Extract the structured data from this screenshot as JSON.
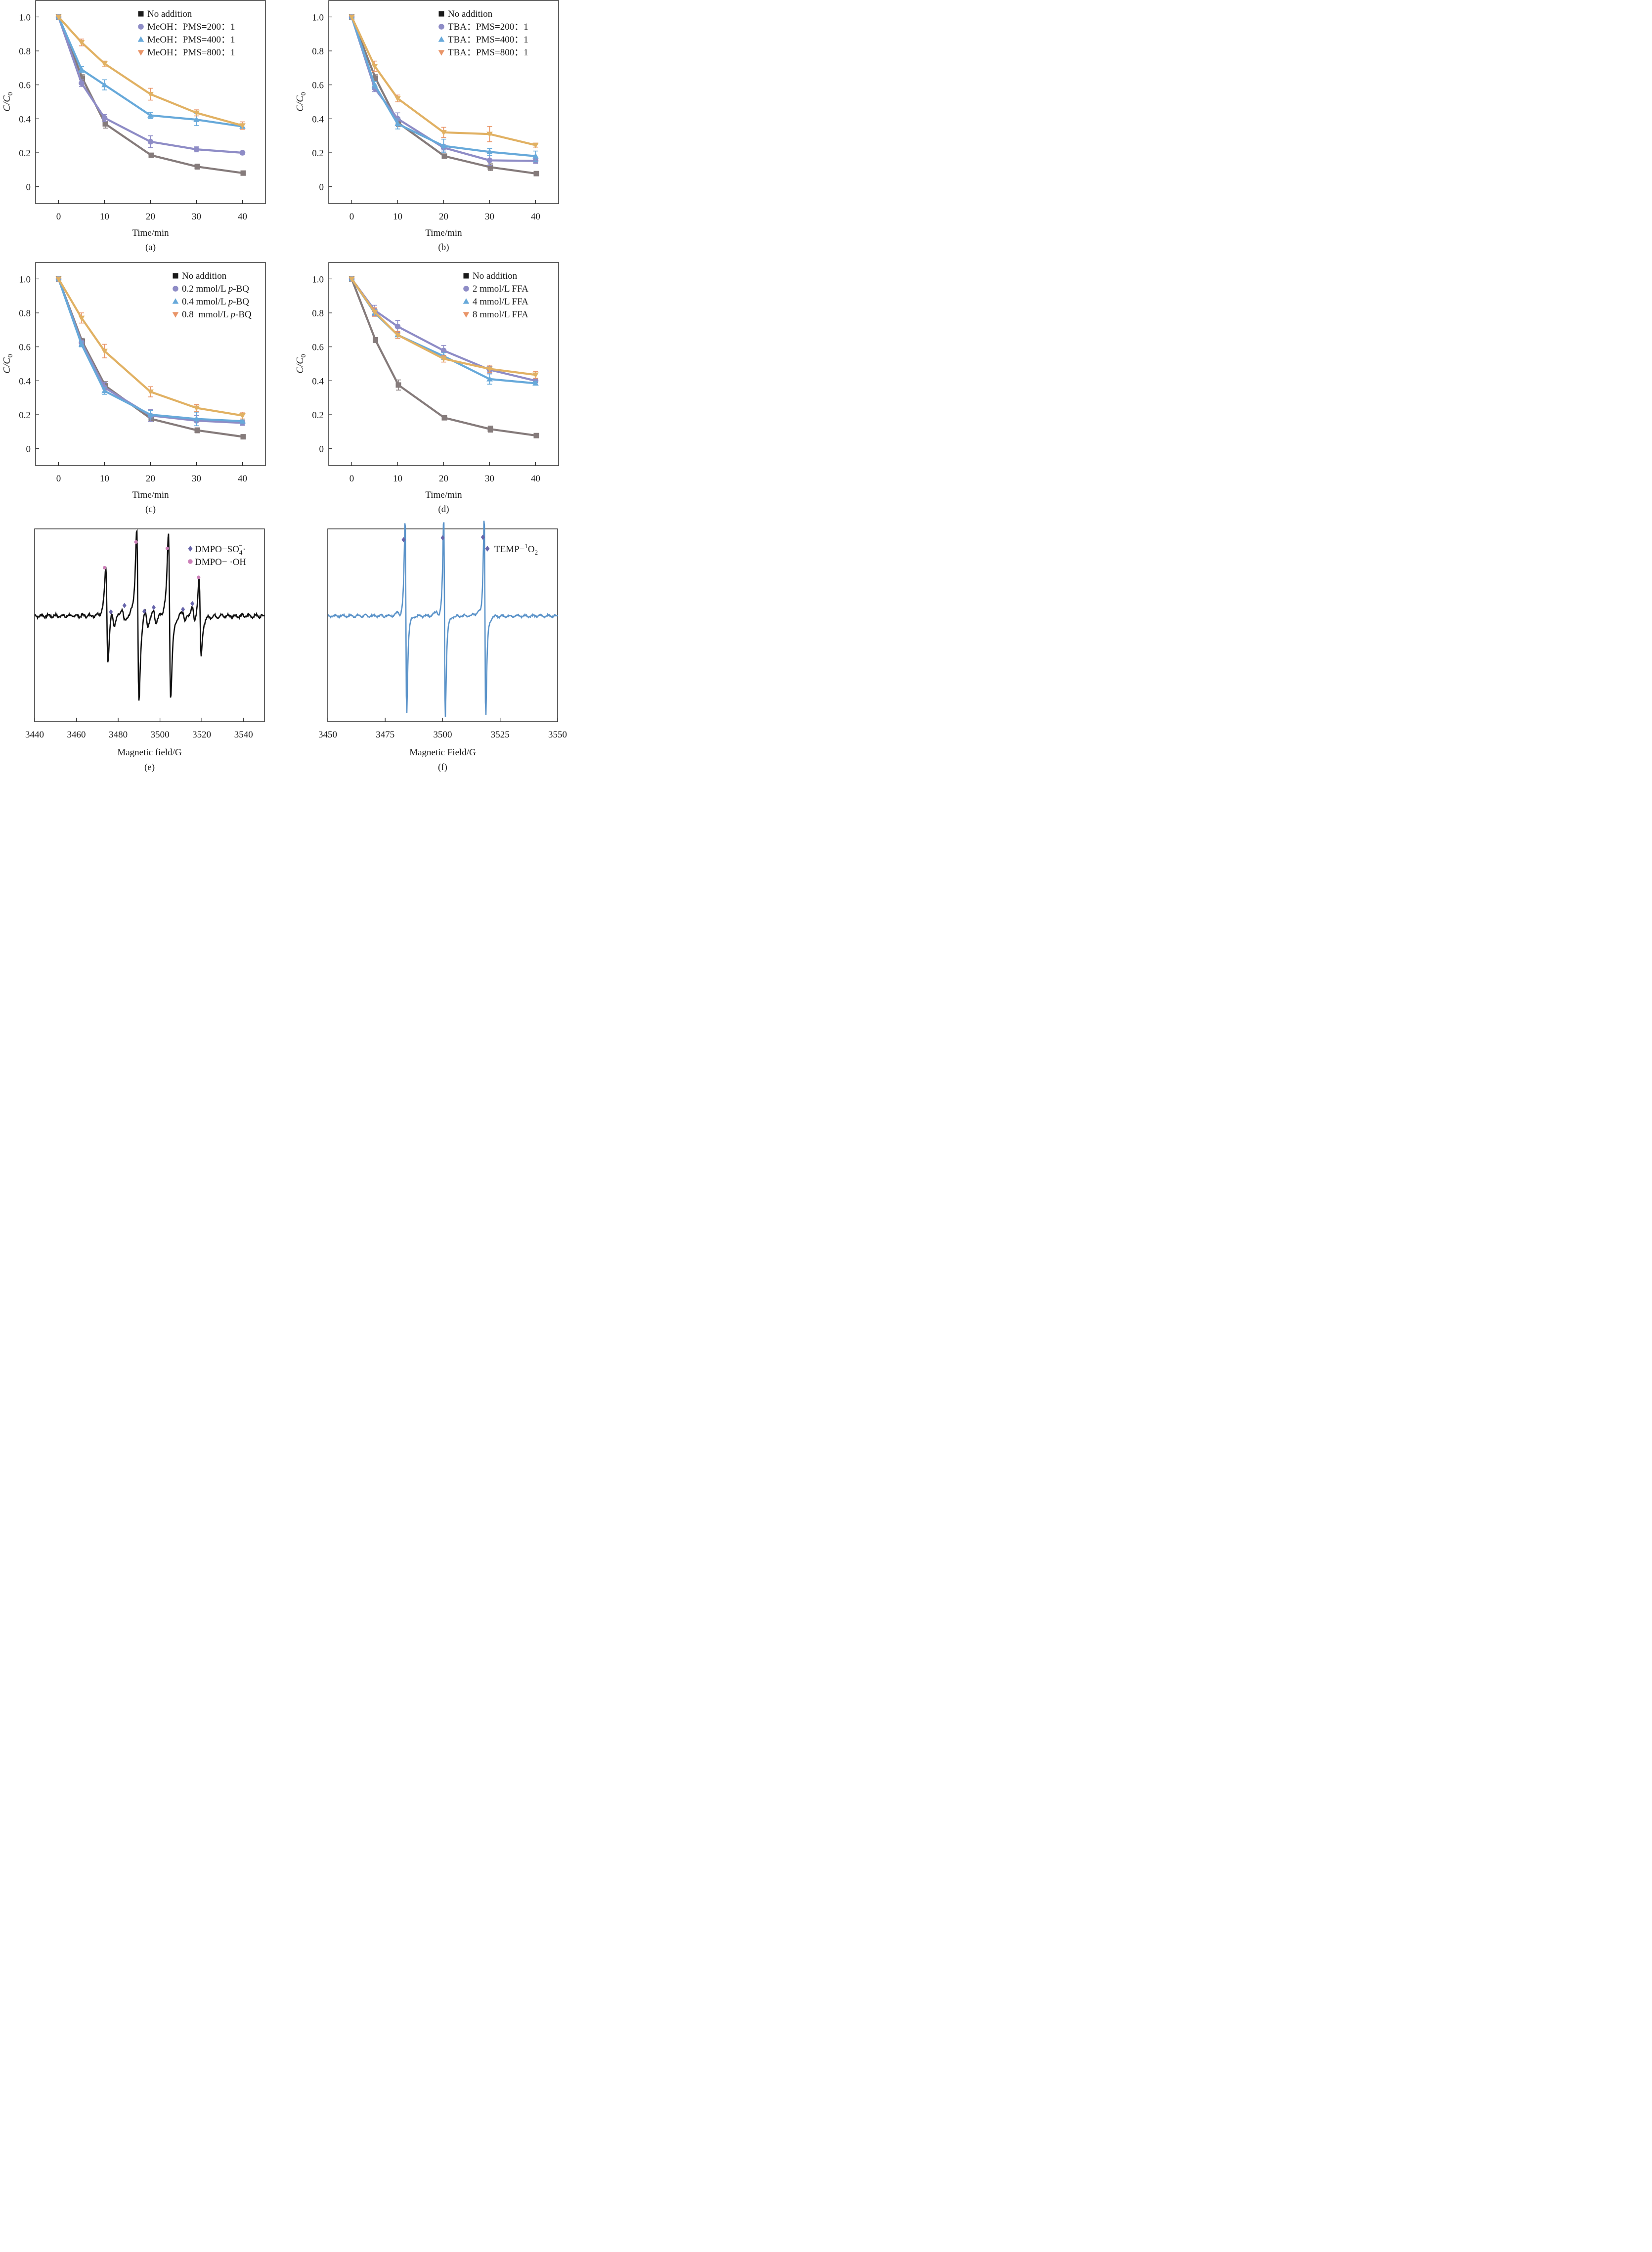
{
  "colors": {
    "gray": "#857b7b",
    "purple": "#8e8cc6",
    "blue": "#67a9da",
    "gold": "#e1b163",
    "orange_marker": "#e99568",
    "legend_black": "#1a1a1a",
    "epr_black": "#111111",
    "epr_blue": "#5b93c9",
    "diamond": "#6765ab",
    "pink": "#cc80b8"
  },
  "chart_data": [
    {
      "id": "a",
      "type": "line",
      "caption": "(a)",
      "xlabel": "Time/min",
      "ylabel": "C/C0",
      "xlim": [
        -5,
        45
      ],
      "ylim": [
        -0.1,
        1.1
      ],
      "xticks": [
        0,
        10,
        20,
        30,
        40
      ],
      "yticks": [
        0,
        0.2,
        0.4,
        0.6,
        0.8,
        1.0
      ],
      "ytick_labels": [
        "0",
        "0.2",
        "0.4",
        "0.6",
        "0.8",
        "1.0"
      ],
      "grid": false,
      "legend_position": "top-right",
      "x": [
        0,
        5,
        10,
        20,
        30,
        40
      ],
      "series": [
        {
          "name": "No addition",
          "marker": "square",
          "values": [
            1.0,
            0.64,
            0.37,
            0.185,
            0.118,
            0.08
          ],
          "errors": [
            0,
            0.02,
            0.025,
            0.01,
            0.015,
            0.008
          ]
        },
        {
          "name": "MeOH：PMS=200：1",
          "marker": "circle",
          "values": [
            1.0,
            0.61,
            0.405,
            0.265,
            0.22,
            0.2
          ],
          "errors": [
            0,
            0.02,
            0.02,
            0.035,
            0.015,
            0.01
          ]
        },
        {
          "name": "MeOH：PMS=400：1",
          "marker": "triangle-up",
          "values": [
            1.0,
            0.69,
            0.6,
            0.42,
            0.395,
            0.355
          ],
          "errors": [
            0,
            0.018,
            0.03,
            0.018,
            0.035,
            0.012
          ]
        },
        {
          "name": "MeOH：PMS=800：1",
          "marker": "triangle-down",
          "values": [
            1.0,
            0.85,
            0.725,
            0.545,
            0.435,
            0.36
          ],
          "errors": [
            0,
            0.02,
            0.015,
            0.035,
            0.018,
            0.022
          ]
        }
      ]
    },
    {
      "id": "b",
      "type": "line",
      "caption": "(b)",
      "xlabel": "Time/min",
      "ylabel": "C/C0",
      "xlim": [
        -5,
        45
      ],
      "ylim": [
        -0.1,
        1.1
      ],
      "xticks": [
        0,
        10,
        20,
        30,
        40
      ],
      "yticks": [
        0,
        0.2,
        0.4,
        0.6,
        0.8,
        1.0
      ],
      "ytick_labels": [
        "0",
        "0.2",
        "0.4",
        "0.6",
        "0.8",
        "1.0"
      ],
      "grid": false,
      "legend_position": "top-right",
      "x": [
        0,
        5,
        10,
        20,
        30,
        40
      ],
      "series": [
        {
          "name": "No addition",
          "marker": "square",
          "values": [
            1.0,
            0.64,
            0.375,
            0.18,
            0.115,
            0.077
          ],
          "errors": [
            0,
            0.02,
            0.02,
            0.01,
            0.02,
            0.008
          ]
        },
        {
          "name": "TBA：PMS=200：1",
          "marker": "circle",
          "values": [
            1.0,
            0.58,
            0.4,
            0.23,
            0.155,
            0.152
          ],
          "errors": [
            0,
            0.02,
            0.035,
            0.02,
            0.03,
            0.015
          ]
        },
        {
          "name": "TBA：PMS=400：1",
          "marker": "triangle-up",
          "values": [
            1.0,
            0.6,
            0.37,
            0.24,
            0.205,
            0.18
          ],
          "errors": [
            0,
            0.02,
            0.03,
            0.04,
            0.02,
            0.03
          ]
        },
        {
          "name": "TBA：PMS=800：1",
          "marker": "triangle-down",
          "values": [
            1.0,
            0.71,
            0.52,
            0.32,
            0.31,
            0.245
          ],
          "errors": [
            0,
            0.03,
            0.02,
            0.03,
            0.045,
            0.012
          ]
        }
      ]
    },
    {
      "id": "c",
      "type": "line",
      "caption": "(c)",
      "xlabel": "Time/min",
      "ylabel": "C/C0",
      "xlim": [
        -5,
        45
      ],
      "ylim": [
        -0.1,
        1.1
      ],
      "xticks": [
        0,
        10,
        20,
        30,
        40
      ],
      "yticks": [
        0,
        0.2,
        0.4,
        0.6,
        0.8,
        1.0
      ],
      "ytick_labels": [
        "0",
        "0.2",
        "0.4",
        "0.6",
        "0.8",
        "1.0"
      ],
      "grid": false,
      "legend_position": "top-right",
      "x": [
        0,
        5,
        10,
        20,
        30,
        40
      ],
      "series": [
        {
          "name": "No addition",
          "marker": "square",
          "values": [
            1.0,
            0.63,
            0.37,
            0.175,
            0.108,
            0.07
          ],
          "errors": [
            0,
            0.02,
            0.025,
            0.015,
            0.015,
            0.008
          ]
        },
        {
          "name": "0.2 mmol/L p-BQ",
          "marker": "circle",
          "values": [
            1.0,
            0.625,
            0.36,
            0.195,
            0.165,
            0.152
          ],
          "errors": [
            0,
            0.015,
            0.03,
            0.035,
            0.03,
            0.015
          ]
        },
        {
          "name": "0.4 mmol/L p-BQ",
          "marker": "triangle-up",
          "values": [
            1.0,
            0.615,
            0.34,
            0.2,
            0.175,
            0.162
          ],
          "errors": [
            0,
            0.015,
            0.02,
            0.025,
            0.04,
            0.012
          ]
        },
        {
          "name": "0.8  mmol/L p-BQ",
          "marker": "triangle-down",
          "values": [
            1.0,
            0.77,
            0.575,
            0.335,
            0.24,
            0.195
          ],
          "errors": [
            0,
            0.03,
            0.04,
            0.03,
            0.02,
            0.02
          ]
        }
      ]
    },
    {
      "id": "d",
      "type": "line",
      "caption": "(d)",
      "xlabel": "Time/min",
      "ylabel": "C/C0",
      "xlim": [
        -5,
        45
      ],
      "ylim": [
        -0.1,
        1.1
      ],
      "xticks": [
        0,
        10,
        20,
        30,
        40
      ],
      "yticks": [
        0,
        0.2,
        0.4,
        0.6,
        0.8,
        1.0
      ],
      "ytick_labels": [
        "0",
        "0.2",
        "0.4",
        "0.6",
        "0.8",
        "1.0"
      ],
      "grid": false,
      "legend_position": "top-right",
      "x": [
        0,
        5,
        10,
        20,
        30,
        40
      ],
      "series": [
        {
          "name": "No addition",
          "marker": "square",
          "values": [
            1.0,
            0.64,
            0.375,
            0.182,
            0.115,
            0.077
          ],
          "errors": [
            0,
            0.015,
            0.03,
            0.01,
            0.018,
            0.01
          ]
        },
        {
          "name": "2 mmol/L FFA",
          "marker": "circle",
          "values": [
            1.0,
            0.815,
            0.72,
            0.578,
            0.465,
            0.4
          ],
          "errors": [
            0,
            0.03,
            0.035,
            0.03,
            0.02,
            0.012
          ]
        },
        {
          "name": "4 mmol/L FFA",
          "marker": "triangle-up",
          "values": [
            1.0,
            0.8,
            0.67,
            0.545,
            0.41,
            0.385
          ],
          "errors": [
            0,
            0.02,
            0.02,
            0.02,
            0.03,
            0.01
          ]
        },
        {
          "name": "8 mmol/L FFA",
          "marker": "triangle-down",
          "values": [
            1.0,
            0.805,
            0.67,
            0.53,
            0.47,
            0.435
          ],
          "errors": [
            0,
            0.025,
            0.02,
            0.02,
            0.022,
            0.02
          ]
        }
      ]
    },
    {
      "id": "e",
      "type": "line",
      "caption": "(e)",
      "xlabel": "Magnetic field/G",
      "ylabel": "",
      "xlim": [
        3440,
        3550
      ],
      "xticks": [
        3440,
        3460,
        3480,
        3500,
        3520,
        3540
      ],
      "yticks": [],
      "grid": false,
      "legend_position": "top-right",
      "legend": [
        {
          "name": "DMPO−SO",
          "sub": "4",
          "sup": "−",
          "suffix": "·",
          "marker": "diamond"
        },
        {
          "name": "DMPO− ·OH",
          "marker": "circle"
        }
      ],
      "peaks_dmpo_oh": [
        {
          "field": 3473.5,
          "intensity": 0.55
        },
        {
          "field": 3488.5,
          "intensity": 0.95
        },
        {
          "field": 3503.5,
          "intensity": 0.85
        },
        {
          "field": 3518.5,
          "intensity": 0.4
        }
      ],
      "peaks_dmpo_so4": [
        {
          "field": 3476.5,
          "intensity": 0.0
        },
        {
          "field": 3483,
          "intensity": 0.1
        },
        {
          "field": 3492.5,
          "intensity": 0.01
        },
        {
          "field": 3497,
          "intensity": 0.07
        },
        {
          "field": 3511,
          "intensity": 0.04
        },
        {
          "field": 3515.5,
          "intensity": 0.13
        }
      ],
      "troughs": [
        {
          "field": 3475.5,
          "intensity": -0.32
        },
        {
          "field": 3490.3,
          "intensity": -1.0
        },
        {
          "field": 3505.5,
          "intensity": -1.07
        },
        {
          "field": 3520,
          "intensity": -0.5
        }
      ]
    },
    {
      "id": "f",
      "type": "line",
      "caption": "(f)",
      "xlabel": "Magnetic Field/G",
      "ylabel": "",
      "xlim": [
        3450,
        3550
      ],
      "xticks": [
        3450,
        3475,
        3500,
        3525,
        3550
      ],
      "yticks": [],
      "grid": false,
      "legend_position": "top-right",
      "legend": [
        {
          "name": "TEMP−",
          "sup": "1",
          "name2": "O",
          "sub": "2",
          "marker": "diamond"
        }
      ],
      "peaks_temp_1o2": [
        {
          "field": 3483,
          "intensity": 1.0
        },
        {
          "field": 3500,
          "intensity": 1.03
        },
        {
          "field": 3517.5,
          "intensity": 1.04
        }
      ],
      "troughs": [
        {
          "field": 3484.8,
          "intensity": -0.95
        },
        {
          "field": 3501.6,
          "intensity": -0.98
        },
        {
          "field": 3519.2,
          "intensity": -1.02
        }
      ]
    }
  ]
}
